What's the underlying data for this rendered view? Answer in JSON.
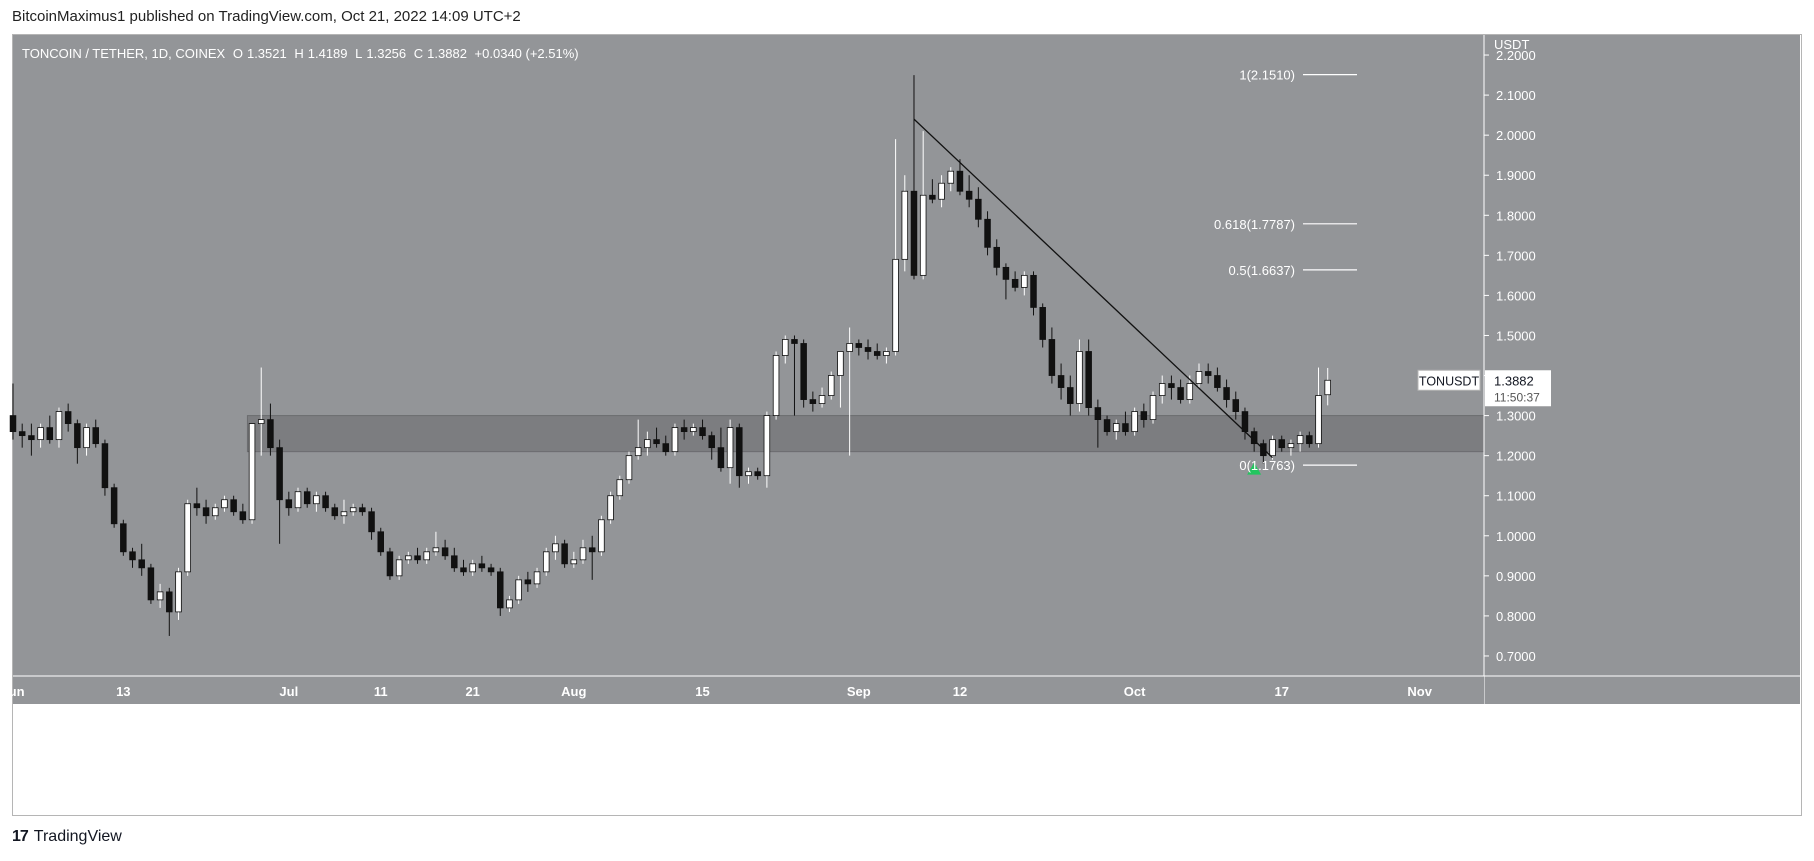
{
  "header": {
    "text": "BitcoinMaximus1 published on TradingView.com, Oct 21, 2022 14:09 UTC+2"
  },
  "legend": {
    "symbol": "TONCOIN / TETHER, 1D, COINEX",
    "o_key": "O",
    "o": "1.3521",
    "h_key": "H",
    "h": "1.4189",
    "l_key": "L",
    "l": "1.3256",
    "c_key": "C",
    "c": "1.3882",
    "change": "+0.0340 (+2.51%)"
  },
  "axis": {
    "currency": "USDT"
  },
  "price_tag": {
    "label": "TONUSDT",
    "price": "1.3882",
    "countdown": "11:50:37"
  },
  "fib_levels": [
    {
      "label": "1(2.1510)",
      "value": 2.151
    },
    {
      "label": "0.618(1.7787)",
      "value": 1.7787
    },
    {
      "label": "0.5(1.6637)",
      "value": 1.6637
    },
    {
      "label": "0(1.1763)",
      "value": 1.1763
    }
  ],
  "footer": {
    "brand": "TradingView",
    "logo": "17"
  },
  "colors": {
    "background": "#939598",
    "up": "#ffffff",
    "down": "#111111",
    "zone": "#7c7d80",
    "accent_marker": "#22c55e"
  },
  "chart_data": {
    "type": "candlestick",
    "title": "TONCOIN / TETHER, 1D, COINEX",
    "ylabel": "USDT",
    "ylim": [
      0.65,
      2.25
    ],
    "y_ticks": [
      2.2,
      2.1,
      2.0,
      1.9,
      1.8,
      1.7,
      1.6,
      1.5,
      1.4,
      1.3,
      1.2,
      1.1,
      1.0,
      0.9,
      0.8,
      0.7
    ],
    "y_tick_labels": [
      "2.2000",
      "2.1000",
      "2.0000",
      "1.9000",
      "1.8000",
      "1.7000",
      "1.6000",
      "1.5000",
      "1.4000",
      "1.3000",
      "1.2000",
      "1.1000",
      "1.0000",
      "0.9000",
      "0.8000",
      "0.7000"
    ],
    "x_tick_labels": [
      {
        "label": "Jun",
        "date": "2022-06-01"
      },
      {
        "label": "13",
        "date": "2022-06-13"
      },
      {
        "label": "Jul",
        "date": "2022-07-01"
      },
      {
        "label": "11",
        "date": "2022-07-11"
      },
      {
        "label": "21",
        "date": "2022-07-21"
      },
      {
        "label": "Aug",
        "date": "2022-08-01"
      },
      {
        "label": "15",
        "date": "2022-08-15"
      },
      {
        "label": "Sep",
        "date": "2022-09-01"
      },
      {
        "label": "12",
        "date": "2022-09-12"
      },
      {
        "label": "Oct",
        "date": "2022-10-01"
      },
      {
        "label": "17",
        "date": "2022-10-17"
      },
      {
        "label": "Nov",
        "date": "2022-11-01"
      }
    ],
    "xlim": [
      "2022-06-01",
      "2022-11-08"
    ],
    "support_zone": [
      1.21,
      1.3
    ],
    "trendline": {
      "start": [
        "2022-09-07",
        2.04
      ],
      "end": [
        "2022-10-16",
        1.195
      ]
    },
    "breakout_marker": {
      "date": "2022-10-14",
      "price": 1.17
    },
    "candles": [
      [
        "2022-06-01",
        1.3,
        1.38,
        1.24,
        1.26
      ],
      [
        "2022-06-02",
        1.26,
        1.28,
        1.22,
        1.25
      ],
      [
        "2022-06-03",
        1.25,
        1.28,
        1.2,
        1.24
      ],
      [
        "2022-06-04",
        1.24,
        1.28,
        1.22,
        1.27
      ],
      [
        "2022-06-05",
        1.27,
        1.3,
        1.23,
        1.24
      ],
      [
        "2022-06-06",
        1.24,
        1.32,
        1.22,
        1.31
      ],
      [
        "2022-06-07",
        1.31,
        1.33,
        1.26,
        1.28
      ],
      [
        "2022-06-08",
        1.28,
        1.29,
        1.18,
        1.22
      ],
      [
        "2022-06-09",
        1.22,
        1.28,
        1.2,
        1.27
      ],
      [
        "2022-06-10",
        1.27,
        1.29,
        1.22,
        1.23
      ],
      [
        "2022-06-11",
        1.23,
        1.24,
        1.1,
        1.12
      ],
      [
        "2022-06-12",
        1.12,
        1.13,
        1.02,
        1.03
      ],
      [
        "2022-06-13",
        1.03,
        1.04,
        0.95,
        0.96
      ],
      [
        "2022-06-14",
        0.96,
        0.97,
        0.92,
        0.94
      ],
      [
        "2022-06-15",
        0.94,
        0.98,
        0.9,
        0.92
      ],
      [
        "2022-06-16",
        0.92,
        0.93,
        0.83,
        0.84
      ],
      [
        "2022-06-17",
        0.84,
        0.88,
        0.82,
        0.86
      ],
      [
        "2022-06-18",
        0.86,
        0.87,
        0.75,
        0.81
      ],
      [
        "2022-06-19",
        0.81,
        0.92,
        0.79,
        0.91
      ],
      [
        "2022-06-20",
        0.91,
        1.09,
        0.9,
        1.08
      ],
      [
        "2022-06-21",
        1.08,
        1.12,
        1.05,
        1.07
      ],
      [
        "2022-06-22",
        1.07,
        1.09,
        1.03,
        1.05
      ],
      [
        "2022-06-23",
        1.05,
        1.08,
        1.04,
        1.07
      ],
      [
        "2022-06-24",
        1.07,
        1.1,
        1.06,
        1.09
      ],
      [
        "2022-06-25",
        1.09,
        1.1,
        1.05,
        1.06
      ],
      [
        "2022-06-26",
        1.06,
        1.08,
        1.03,
        1.04
      ],
      [
        "2022-06-27",
        1.04,
        1.28,
        1.03,
        1.28
      ],
      [
        "2022-06-28",
        1.28,
        1.42,
        1.2,
        1.29
      ],
      [
        "2022-06-29",
        1.29,
        1.33,
        1.2,
        1.22
      ],
      [
        "2022-06-30",
        1.22,
        1.24,
        0.98,
        1.09
      ],
      [
        "2022-07-01",
        1.09,
        1.11,
        1.05,
        1.07
      ],
      [
        "2022-07-02",
        1.07,
        1.12,
        1.06,
        1.11
      ],
      [
        "2022-07-03",
        1.11,
        1.12,
        1.07,
        1.08
      ],
      [
        "2022-07-04",
        1.08,
        1.11,
        1.06,
        1.1
      ],
      [
        "2022-07-05",
        1.1,
        1.11,
        1.06,
        1.07
      ],
      [
        "2022-07-06",
        1.07,
        1.08,
        1.04,
        1.05
      ],
      [
        "2022-07-07",
        1.05,
        1.09,
        1.03,
        1.06
      ],
      [
        "2022-07-08",
        1.06,
        1.08,
        1.05,
        1.07
      ],
      [
        "2022-07-09",
        1.07,
        1.08,
        1.05,
        1.06
      ],
      [
        "2022-07-10",
        1.06,
        1.07,
        0.99,
        1.01
      ],
      [
        "2022-07-11",
        1.01,
        1.02,
        0.95,
        0.96
      ],
      [
        "2022-07-12",
        0.96,
        0.97,
        0.89,
        0.9
      ],
      [
        "2022-07-13",
        0.9,
        0.95,
        0.89,
        0.94
      ],
      [
        "2022-07-14",
        0.94,
        0.96,
        0.93,
        0.95
      ],
      [
        "2022-07-15",
        0.95,
        0.97,
        0.93,
        0.94
      ],
      [
        "2022-07-16",
        0.94,
        0.97,
        0.93,
        0.96
      ],
      [
        "2022-07-17",
        0.96,
        1.01,
        0.95,
        0.97
      ],
      [
        "2022-07-18",
        0.97,
        0.99,
        0.94,
        0.95
      ],
      [
        "2022-07-19",
        0.95,
        0.97,
        0.91,
        0.92
      ],
      [
        "2022-07-20",
        0.92,
        0.94,
        0.9,
        0.91
      ],
      [
        "2022-07-21",
        0.91,
        0.94,
        0.9,
        0.93
      ],
      [
        "2022-07-22",
        0.93,
        0.95,
        0.91,
        0.92
      ],
      [
        "2022-07-23",
        0.92,
        0.93,
        0.9,
        0.91
      ],
      [
        "2022-07-24",
        0.91,
        0.92,
        0.8,
        0.82
      ],
      [
        "2022-07-25",
        0.82,
        0.85,
        0.81,
        0.84
      ],
      [
        "2022-07-26",
        0.84,
        0.9,
        0.83,
        0.89
      ],
      [
        "2022-07-27",
        0.89,
        0.91,
        0.86,
        0.88
      ],
      [
        "2022-07-28",
        0.88,
        0.92,
        0.87,
        0.91
      ],
      [
        "2022-07-29",
        0.91,
        0.97,
        0.9,
        0.96
      ],
      [
        "2022-07-30",
        0.96,
        1.0,
        0.94,
        0.98
      ],
      [
        "2022-07-31",
        0.98,
        0.99,
        0.92,
        0.93
      ],
      [
        "2022-08-01",
        0.93,
        0.96,
        0.92,
        0.94
      ],
      [
        "2022-08-02",
        0.94,
        0.99,
        0.93,
        0.97
      ],
      [
        "2022-08-03",
        0.97,
        1.0,
        0.89,
        0.96
      ],
      [
        "2022-08-04",
        0.96,
        1.05,
        0.95,
        1.04
      ],
      [
        "2022-08-05",
        1.04,
        1.11,
        1.03,
        1.1
      ],
      [
        "2022-08-06",
        1.1,
        1.15,
        1.09,
        1.14
      ],
      [
        "2022-08-07",
        1.14,
        1.21,
        1.13,
        1.2
      ],
      [
        "2022-08-08",
        1.2,
        1.29,
        1.19,
        1.22
      ],
      [
        "2022-08-09",
        1.22,
        1.26,
        1.2,
        1.24
      ],
      [
        "2022-08-10",
        1.24,
        1.27,
        1.22,
        1.23
      ],
      [
        "2022-08-11",
        1.23,
        1.25,
        1.2,
        1.21
      ],
      [
        "2022-08-12",
        1.21,
        1.28,
        1.2,
        1.27
      ],
      [
        "2022-08-13",
        1.27,
        1.29,
        1.24,
        1.26
      ],
      [
        "2022-08-14",
        1.26,
        1.28,
        1.25,
        1.27
      ],
      [
        "2022-08-15",
        1.27,
        1.29,
        1.24,
        1.25
      ],
      [
        "2022-08-16",
        1.25,
        1.26,
        1.19,
        1.22
      ],
      [
        "2022-08-17",
        1.22,
        1.27,
        1.16,
        1.17
      ],
      [
        "2022-08-18",
        1.17,
        1.29,
        1.13,
        1.27
      ],
      [
        "2022-08-19",
        1.27,
        1.28,
        1.12,
        1.15
      ],
      [
        "2022-08-20",
        1.15,
        1.17,
        1.13,
        1.16
      ],
      [
        "2022-08-21",
        1.16,
        1.17,
        1.14,
        1.15
      ],
      [
        "2022-08-22",
        1.15,
        1.31,
        1.12,
        1.3
      ],
      [
        "2022-08-23",
        1.3,
        1.46,
        1.29,
        1.45
      ],
      [
        "2022-08-24",
        1.45,
        1.5,
        1.43,
        1.49
      ],
      [
        "2022-08-25",
        1.49,
        1.5,
        1.3,
        1.48
      ],
      [
        "2022-08-26",
        1.48,
        1.49,
        1.32,
        1.34
      ],
      [
        "2022-08-27",
        1.34,
        1.36,
        1.31,
        1.33
      ],
      [
        "2022-08-28",
        1.33,
        1.37,
        1.32,
        1.35
      ],
      [
        "2022-08-29",
        1.35,
        1.41,
        1.34,
        1.4
      ],
      [
        "2022-08-30",
        1.4,
        1.46,
        1.32,
        1.46
      ],
      [
        "2022-08-31",
        1.46,
        1.52,
        1.2,
        1.48
      ],
      [
        "2022-09-01",
        1.48,
        1.49,
        1.45,
        1.47
      ],
      [
        "2022-09-02",
        1.47,
        1.49,
        1.44,
        1.46
      ],
      [
        "2022-09-03",
        1.46,
        1.48,
        1.44,
        1.45
      ],
      [
        "2022-09-04",
        1.45,
        1.47,
        1.43,
        1.46
      ],
      [
        "2022-09-05",
        1.46,
        1.99,
        1.45,
        1.69
      ],
      [
        "2022-09-06",
        1.69,
        1.9,
        1.66,
        1.86
      ],
      [
        "2022-09-07",
        1.86,
        2.15,
        1.64,
        1.65
      ],
      [
        "2022-09-08",
        1.65,
        2.01,
        1.64,
        1.85
      ],
      [
        "2022-09-09",
        1.85,
        1.89,
        1.83,
        1.84
      ],
      [
        "2022-09-10",
        1.84,
        1.9,
        1.82,
        1.88
      ],
      [
        "2022-09-11",
        1.88,
        1.92,
        1.86,
        1.91
      ],
      [
        "2022-09-12",
        1.91,
        1.94,
        1.85,
        1.86
      ],
      [
        "2022-09-13",
        1.86,
        1.9,
        1.82,
        1.84
      ],
      [
        "2022-09-14",
        1.84,
        1.87,
        1.77,
        1.79
      ],
      [
        "2022-09-15",
        1.79,
        1.81,
        1.7,
        1.72
      ],
      [
        "2022-09-16",
        1.72,
        1.74,
        1.65,
        1.67
      ],
      [
        "2022-09-17",
        1.67,
        1.68,
        1.59,
        1.64
      ],
      [
        "2022-09-18",
        1.64,
        1.66,
        1.61,
        1.62
      ],
      [
        "2022-09-19",
        1.62,
        1.66,
        1.6,
        1.65
      ],
      [
        "2022-09-20",
        1.65,
        1.66,
        1.55,
        1.57
      ],
      [
        "2022-09-21",
        1.57,
        1.58,
        1.47,
        1.49
      ],
      [
        "2022-09-22",
        1.49,
        1.52,
        1.38,
        1.4
      ],
      [
        "2022-09-23",
        1.4,
        1.43,
        1.34,
        1.37
      ],
      [
        "2022-09-24",
        1.37,
        1.4,
        1.3,
        1.33
      ],
      [
        "2022-09-25",
        1.33,
        1.49,
        1.31,
        1.46
      ],
      [
        "2022-09-26",
        1.46,
        1.49,
        1.3,
        1.32
      ],
      [
        "2022-09-27",
        1.32,
        1.34,
        1.22,
        1.29
      ],
      [
        "2022-09-28",
        1.29,
        1.3,
        1.25,
        1.26
      ],
      [
        "2022-09-29",
        1.26,
        1.29,
        1.24,
        1.28
      ],
      [
        "2022-09-30",
        1.28,
        1.31,
        1.25,
        1.26
      ],
      [
        "2022-10-01",
        1.26,
        1.32,
        1.25,
        1.31
      ],
      [
        "2022-10-02",
        1.31,
        1.33,
        1.27,
        1.29
      ],
      [
        "2022-10-03",
        1.29,
        1.36,
        1.28,
        1.35
      ],
      [
        "2022-10-04",
        1.35,
        1.4,
        1.33,
        1.38
      ],
      [
        "2022-10-05",
        1.38,
        1.4,
        1.34,
        1.37
      ],
      [
        "2022-10-06",
        1.37,
        1.39,
        1.33,
        1.34
      ],
      [
        "2022-10-07",
        1.34,
        1.4,
        1.33,
        1.38
      ],
      [
        "2022-10-08",
        1.38,
        1.43,
        1.37,
        1.41
      ],
      [
        "2022-10-09",
        1.41,
        1.43,
        1.38,
        1.4
      ],
      [
        "2022-10-10",
        1.4,
        1.42,
        1.36,
        1.37
      ],
      [
        "2022-10-11",
        1.37,
        1.39,
        1.32,
        1.34
      ],
      [
        "2022-10-12",
        1.34,
        1.36,
        1.29,
        1.31
      ],
      [
        "2022-10-13",
        1.31,
        1.32,
        1.24,
        1.26
      ],
      [
        "2022-10-14",
        1.26,
        1.27,
        1.21,
        1.23
      ],
      [
        "2022-10-15",
        1.23,
        1.24,
        1.18,
        1.2
      ],
      [
        "2022-10-16",
        1.2,
        1.25,
        1.19,
        1.24
      ],
      [
        "2022-10-17",
        1.24,
        1.25,
        1.21,
        1.22
      ],
      [
        "2022-10-18",
        1.22,
        1.24,
        1.2,
        1.23
      ],
      [
        "2022-10-19",
        1.23,
        1.26,
        1.21,
        1.25
      ],
      [
        "2022-10-20",
        1.25,
        1.26,
        1.22,
        1.23
      ],
      [
        "2022-10-21",
        1.23,
        1.42,
        1.22,
        1.35
      ],
      [
        "2022-10-22",
        1.3521,
        1.4189,
        1.3256,
        1.3882
      ]
    ]
  }
}
